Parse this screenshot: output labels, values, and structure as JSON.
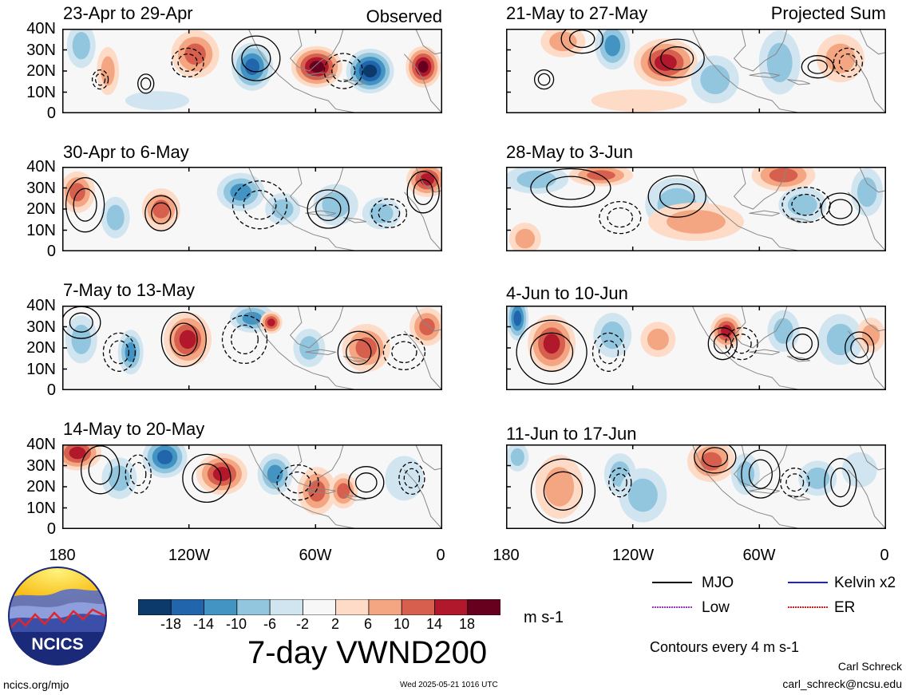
{
  "panels": [
    {
      "title": "23-Apr to 29-Apr",
      "tag": "Observed"
    },
    {
      "title": "21-May to 27-May",
      "tag": "Projected Sum"
    },
    {
      "title": "30-Apr to 6-May",
      "tag": ""
    },
    {
      "title": "28-May to 3-Jun",
      "tag": ""
    },
    {
      "title": "7-May to 13-May",
      "tag": ""
    },
    {
      "title": "4-Jun to 10-Jun",
      "tag": ""
    },
    {
      "title": "14-May to 20-May",
      "tag": ""
    },
    {
      "title": "11-Jun to 17-Jun",
      "tag": ""
    }
  ],
  "y_ticks": [
    "40N",
    "30N",
    "20N",
    "10N",
    "0"
  ],
  "x_ticks": [
    "180",
    "120W",
    "60W",
    "0"
  ],
  "colorbar": {
    "labels": [
      "-18",
      "-14",
      "-10",
      "-6",
      "-2",
      "2",
      "6",
      "10",
      "14",
      "18"
    ],
    "colors": [
      "#0b3a6b",
      "#2166ac",
      "#4393c3",
      "#92c5de",
      "#d1e5f0",
      "#f7f7f7",
      "#fddbc7",
      "#f4a582",
      "#d6604d",
      "#b2182b",
      "#67001f"
    ],
    "units": "m s-1"
  },
  "main_title": "7-day VWND200",
  "legend": {
    "items": [
      {
        "label": "MJO",
        "color": "#000000"
      },
      {
        "label": "Kelvin x2",
        "color": "#1f1fd6"
      },
      {
        "label": "Low",
        "color": "#9b30d9"
      },
      {
        "label": "ER",
        "color": "#d11f1f"
      }
    ],
    "note": "Contours every 4 m s-1"
  },
  "logo_text": "NCICS",
  "footer": {
    "url": "ncics.org/mjo",
    "timestamp": "Wed 2025-05-21 1016 UTC",
    "author": "Carl Schreck",
    "email": "carl_schreck@ncsu.edu"
  }
}
